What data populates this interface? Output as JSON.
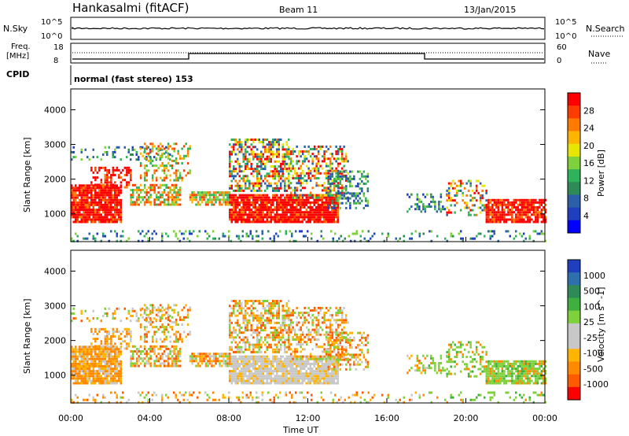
{
  "header": {
    "title": "Hankasalmi (fitACF)",
    "beam": "Beam 11",
    "date": "13/Jan/2015"
  },
  "top_panels": {
    "nsky_label": "N.Sky",
    "nsky_ticks": [
      "10^5",
      "10^0"
    ],
    "nsearch_label": "N.Search",
    "nsearch_ticks": [
      "10^5",
      "10^0"
    ],
    "freq_label_1": "Freq.",
    "freq_label_2": "[MHz]",
    "freq_ticks": [
      "18",
      "8"
    ],
    "nave_label": "Nave",
    "nave_ticks": [
      "60",
      "0"
    ],
    "cpid_label": "CPID",
    "cpid_text": "normal (fast stereo) 153"
  },
  "chart_data": [
    {
      "type": "heatmap",
      "quantity": "power",
      "ylabel": "Slant Range [km]",
      "yticks": [
        "4000",
        "3000",
        "2000",
        "1000"
      ],
      "ylim": [
        200,
        4600
      ],
      "colorbar_label": "Power [dB]",
      "colorbar_ticks": [
        "28",
        "24",
        "20",
        "16",
        "12",
        "8",
        "4"
      ],
      "colorbar_colors": [
        "#ff0000",
        "#ff3c00",
        "#ff7a00",
        "#ffb400",
        "#e6e600",
        "#7fd13b",
        "#2fb35a",
        "#2e8b57",
        "#2b5fa8",
        "#1f3fbf",
        "#0000ff"
      ]
    },
    {
      "type": "heatmap",
      "quantity": "velocity",
      "ylabel": "Slant Range [km]",
      "yticks": [
        "4000",
        "3000",
        "2000",
        "1000"
      ],
      "ylim": [
        200,
        4600
      ],
      "colorbar_label": "Velocity [m s^-1]",
      "colorbar_ticks": [
        "1000",
        "500",
        "100",
        "25",
        "-25",
        "-100",
        "-500",
        "-1000"
      ],
      "colorbar_colors": [
        "#1f3fbf",
        "#2e6fae",
        "#2e8b57",
        "#3faf3f",
        "#7fd13b",
        "#c8c8c8",
        "#c8c8c8",
        "#ffb400",
        "#ff8a00",
        "#ff5a00",
        "#ff0000"
      ]
    }
  ],
  "xaxis": {
    "label": "Time UT",
    "ticks": [
      "00:00",
      "04:00",
      "08:00",
      "12:00",
      "16:00",
      "20:00",
      "00:00"
    ]
  }
}
